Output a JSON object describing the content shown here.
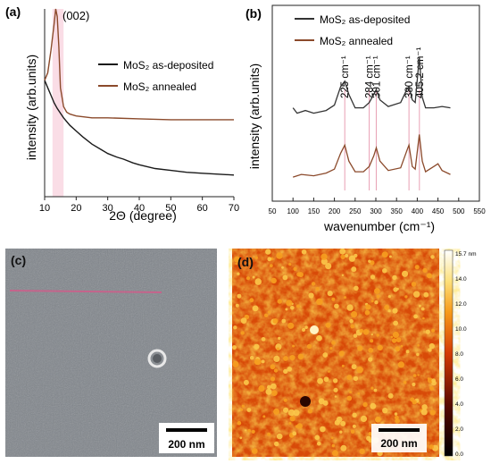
{
  "panels": {
    "a": {
      "label": "(a)",
      "peak_label": "(002)",
      "ylabel": "intensity (arb.units)",
      "xlabel": "2Θ (degree)",
      "legend": [
        "MoS₂ as-deposited",
        "MoS₂ annealed"
      ],
      "colors": {
        "as_deposited": "#1a1a1a",
        "annealed": "#8b4a2b",
        "peak_shade": "#f7c6d6"
      }
    },
    "b": {
      "label": "(b)",
      "ylabel": "intensity (arb.units)",
      "xlabel": "wavenumber (cm⁻¹)",
      "legend": [
        "MoS₂ as-deposited",
        "MoS₂ annealed"
      ],
      "peak_labels": [
        "225 cm⁻¹",
        "284 cm⁻¹",
        "301 cm⁻¹",
        "380 cm⁻¹",
        "405.2 cm⁻¹"
      ],
      "colors": {
        "as_deposited": "#333333",
        "annealed": "#8b4a2b",
        "markers": "#e8a0b4"
      }
    },
    "c": {
      "label": "(c)",
      "scalebar": "200 nm"
    },
    "d": {
      "label": "(d)",
      "scalebar": "200 nm",
      "colorbar_ticks": [
        "15.7 nm",
        "14.0",
        "12.0",
        "10.0",
        "8.0",
        "6.0",
        "4.0",
        "2.0",
        "0.0"
      ]
    }
  },
  "chart_data": [
    {
      "type": "line",
      "xlabel": "2Θ (degree)",
      "ylabel": "intensity (arb.units)",
      "xlim": [
        10,
        70
      ],
      "xticks": [
        10,
        20,
        30,
        40,
        50,
        60,
        70
      ],
      "annotations": [
        "(002)"
      ],
      "series": [
        {
          "name": "MoS₂ as-deposited",
          "x": [
            10,
            11,
            12,
            13,
            14,
            16,
            18,
            20,
            22,
            25,
            28,
            30,
            33,
            35,
            38,
            40,
            45,
            50,
            55,
            60,
            65,
            70
          ],
          "y": [
            0.62,
            0.58,
            0.54,
            0.5,
            0.47,
            0.42,
            0.38,
            0.35,
            0.32,
            0.28,
            0.25,
            0.23,
            0.21,
            0.2,
            0.18,
            0.17,
            0.15,
            0.14,
            0.13,
            0.125,
            0.12,
            0.115
          ]
        },
        {
          "name": "MoS₂ annealed",
          "x": [
            10,
            11,
            12,
            13,
            13.5,
            14,
            14.5,
            15,
            16,
            17,
            18,
            20,
            25,
            30,
            40,
            50,
            60,
            70
          ],
          "y": [
            0.62,
            0.66,
            0.78,
            0.92,
            1.0,
            0.96,
            0.8,
            0.58,
            0.48,
            0.45,
            0.44,
            0.43,
            0.42,
            0.42,
            0.415,
            0.41,
            0.41,
            0.41
          ]
        }
      ]
    },
    {
      "type": "line",
      "xlabel": "wavenumber (cm⁻¹)",
      "ylabel": "intensity (arb.units)",
      "xlim": [
        50,
        550
      ],
      "xticks": [
        50,
        100,
        150,
        200,
        250,
        300,
        350,
        400,
        450,
        500,
        550
      ],
      "annotations": [
        "225 cm⁻¹",
        "284 cm⁻¹",
        "301 cm⁻¹",
        "380 cm⁻¹",
        "405.2 cm⁻¹"
      ],
      "peak_positions": [
        225,
        284,
        301,
        380,
        405.2
      ],
      "series": [
        {
          "name": "MoS₂ as-deposited",
          "x": [
            100,
            110,
            130,
            150,
            180,
            200,
            215,
            225,
            235,
            250,
            270,
            284,
            295,
            301,
            310,
            330,
            360,
            375,
            380,
            388,
            395,
            405,
            412,
            420,
            440,
            460,
            480
          ],
          "y": [
            0.62,
            0.58,
            0.6,
            0.58,
            0.6,
            0.64,
            0.78,
            0.82,
            0.72,
            0.62,
            0.62,
            0.66,
            0.72,
            0.76,
            0.68,
            0.63,
            0.66,
            0.76,
            0.78,
            0.68,
            0.66,
            1.0,
            0.7,
            0.62,
            0.62,
            0.63,
            0.62
          ]
        },
        {
          "name": "MoS₂ annealed",
          "x": [
            100,
            120,
            150,
            180,
            200,
            215,
            225,
            235,
            250,
            270,
            284,
            295,
            301,
            310,
            330,
            360,
            375,
            380,
            388,
            395,
            405,
            412,
            420,
            440,
            450,
            460,
            480
          ],
          "y": [
            0.1,
            0.12,
            0.11,
            0.13,
            0.16,
            0.28,
            0.34,
            0.22,
            0.14,
            0.14,
            0.18,
            0.26,
            0.32,
            0.22,
            0.15,
            0.17,
            0.3,
            0.34,
            0.18,
            0.16,
            0.42,
            0.22,
            0.14,
            0.18,
            0.2,
            0.15,
            0.12
          ]
        }
      ]
    }
  ]
}
